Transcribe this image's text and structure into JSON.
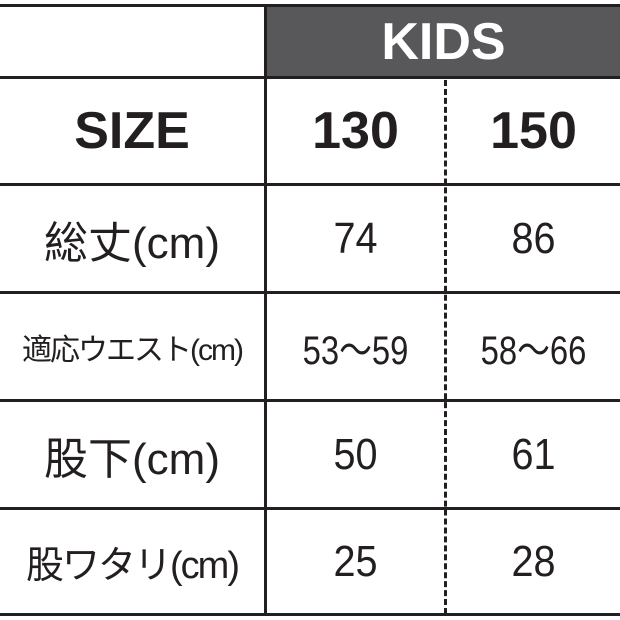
{
  "header": {
    "group": "KIDS",
    "size_label": "SIZE",
    "sizes": [
      "130",
      "150"
    ]
  },
  "rows": [
    {
      "label": "総丈(cm)",
      "values": [
        "74",
        "86"
      ]
    },
    {
      "label": "適応ウエスト(cm)",
      "values": [
        "53〜59",
        "58〜66"
      ]
    },
    {
      "label": "股下(cm)",
      "values": [
        "50",
        "61"
      ]
    },
    {
      "label": "股ワタリ(cm)",
      "values": [
        "25",
        "28"
      ]
    }
  ],
  "colors": {
    "header_bg": "#58585a",
    "line": "#231f20"
  }
}
